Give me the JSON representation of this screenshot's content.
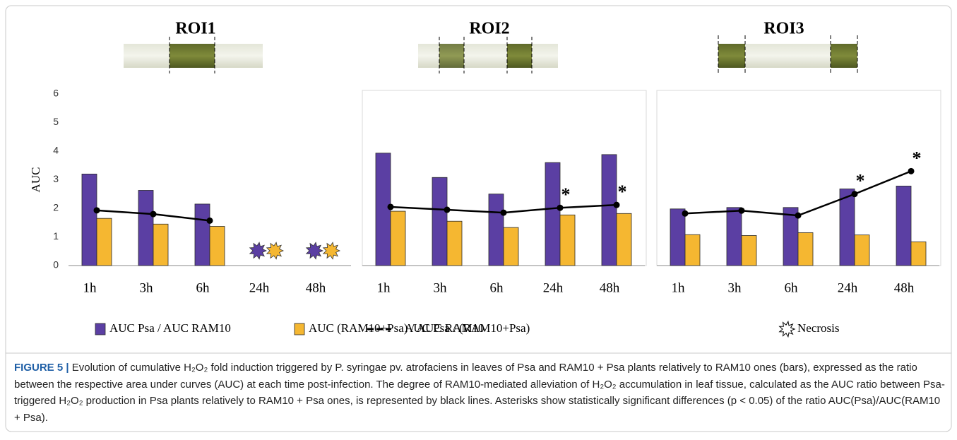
{
  "chart_data": [
    {
      "type": "bar",
      "title": "ROI1",
      "ylabel": "AUC",
      "categories": [
        "1h",
        "3h",
        "6h",
        "24h",
        "48h"
      ],
      "ylim": [
        0,
        6
      ],
      "yticks": [
        0,
        1,
        2,
        3,
        4,
        5,
        6
      ],
      "series": [
        {
          "name": "AUC Psa / AUC RAM10",
          "color": "#5b3fa3",
          "values": [
            3.2,
            2.63,
            2.15,
            null,
            null
          ]
        },
        {
          "name": "AUC (RAM10+Psa) / AUC RAM10",
          "color": "#f5b731",
          "values": [
            1.65,
            1.45,
            1.37,
            null,
            null
          ]
        },
        {
          "name": "AUC Psa / (RAM10+Psa)",
          "color": "#000000",
          "type": "line",
          "values": [
            1.93,
            1.8,
            1.57,
            null,
            null
          ]
        }
      ],
      "necrosis": [
        false,
        false,
        false,
        true,
        true
      ]
    },
    {
      "type": "bar",
      "title": "ROI2",
      "categories": [
        "1h",
        "3h",
        "6h",
        "24h",
        "48h"
      ],
      "ylim": [
        0,
        6
      ],
      "series": [
        {
          "name": "AUC Psa / AUC RAM10",
          "color": "#5b3fa3",
          "values": [
            3.93,
            3.08,
            2.5,
            3.6,
            3.88
          ]
        },
        {
          "name": "AUC (RAM10+Psa) / AUC RAM10",
          "color": "#f5b731",
          "values": [
            1.9,
            1.55,
            1.33,
            1.77,
            1.82
          ]
        },
        {
          "name": "AUC Psa / (RAM10+Psa)",
          "color": "#000000",
          "type": "line",
          "values": [
            2.05,
            1.95,
            1.85,
            2.02,
            2.12
          ]
        }
      ],
      "annotations": [
        null,
        null,
        null,
        "*",
        "*"
      ]
    },
    {
      "type": "bar",
      "title": "ROI3",
      "categories": [
        "1h",
        "3h",
        "6h",
        "24h",
        "48h"
      ],
      "ylim": [
        0,
        6
      ],
      "series": [
        {
          "name": "AUC Psa / AUC RAM10",
          "color": "#5b3fa3",
          "values": [
            1.98,
            2.03,
            2.03,
            2.68,
            2.78
          ]
        },
        {
          "name": "AUC (RAM10+Psa) / AUC RAM10",
          "color": "#f5b731",
          "values": [
            1.08,
            1.05,
            1.15,
            1.07,
            0.83
          ]
        },
        {
          "name": "AUC Psa / (RAM10+Psa)",
          "color": "#000000",
          "type": "line",
          "values": [
            1.82,
            1.92,
            1.75,
            2.5,
            3.3
          ]
        }
      ],
      "annotations": [
        null,
        null,
        null,
        "*",
        "*"
      ]
    }
  ],
  "legend_necrosis": "Necrosis",
  "caption": {
    "label": "FIGURE 5 |",
    "text": "Evolution of cumulative H₂O₂ fold induction triggered by P. syringae pv. atrofaciens in leaves of Psa and RAM10 + Psa plants relatively to RAM10 ones (bars), expressed as the ratio between the respective area under curves (AUC) at each time post-infection. The degree of RAM10-mediated alleviation of H₂O₂ accumulation in leaf tissue, calculated as the AUC ratio between Psa-triggered H₂O₂ production in Psa plants relatively to RAM10 + Psa ones, is represented by black lines. Asterisks show statistically significant differences (p < 0.05) of the ratio AUC(Psa)/AUC(RAM10 + Psa)."
  }
}
